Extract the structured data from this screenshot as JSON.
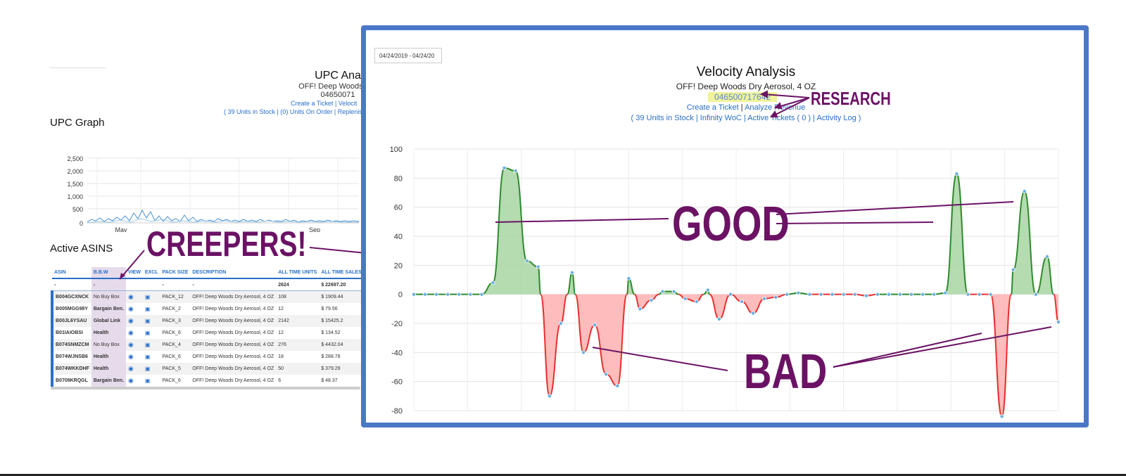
{
  "background_page": {
    "title": "UPC Ana",
    "product": "OFF! Deep Woods Dry",
    "upc": "04650071",
    "links": "Create a Ticket | Velocit",
    "stock_links": "( 39 Units in Stock | (0) Units On Order | Replenis",
    "graph_title": "UPC Graph",
    "y_ticks": [
      "2,500",
      "2,000",
      "1,500",
      "1,000",
      "500",
      "0"
    ],
    "x_ticks": [
      "May",
      "Sep"
    ],
    "active_asins_title": "Active ASINS",
    "table": {
      "headers": [
        "ASIN",
        "B.B.W",
        "VIEW",
        "EXCL",
        "PACK SIZE",
        "DESCRIPTION",
        "ALL TIME UNITS",
        "ALL TIME SALES"
      ],
      "totals": [
        "-",
        "-",
        "",
        "",
        "-",
        "-",
        "2624",
        "$ 22697.20"
      ],
      "rows": [
        {
          "asin": "B004GCXNCK",
          "bbw": "No Buy Box",
          "bbw_red": false,
          "pack": "PACK_12",
          "desc": "OFF! Deep Woods Dry Aerosol, 4 OZ",
          "units": "108",
          "sales": "$ 1909.44"
        },
        {
          "asin": "B005MGG98Y",
          "bbw": "Bargain Ben.",
          "bbw_red": true,
          "pack": "PACK_2",
          "desc": "OFF! Deep Woods Dry Aerosol, 4 OZ",
          "units": "12",
          "sales": "$ 79.56"
        },
        {
          "asin": "B00JL6YSAU",
          "bbw": "Global Link",
          "bbw_red": true,
          "pack": "PACK_3",
          "desc": "OFF! Deep Woods Dry Aerosol, 4 OZ",
          "units": "2142",
          "sales": "$ 15425.2"
        },
        {
          "asin": "B01IAIOBSI",
          "bbw": "Health",
          "bbw_red": true,
          "pack": "PACK_6",
          "desc": "OFF! Deep Woods Dry Aerosol, 4 OZ",
          "units": "12",
          "sales": "$ 134.52"
        },
        {
          "asin": "B074SNMZCM",
          "bbw": "No Buy Box",
          "bbw_red": false,
          "pack": "PACK_4",
          "desc": "OFF! Deep Woods Dry Aerosol, 4 OZ",
          "units": "276",
          "sales": "$ 4432.04"
        },
        {
          "asin": "B074WJNSB6",
          "bbw": "Health",
          "bbw_red": true,
          "pack": "PACK_6",
          "desc": "OFF! Deep Woods Dry Aerosol, 4 OZ",
          "units": "18",
          "sales": "$ 288.78"
        },
        {
          "asin": "B074WKKDHF",
          "bbw": "Health",
          "bbw_red": true,
          "pack": "PACK_5",
          "desc": "OFF! Deep Woods Dry Aerosol, 4 OZ",
          "units": "50",
          "sales": "$ 379.29"
        },
        {
          "asin": "B0709KRQGL",
          "bbw": "Bargain Ben.",
          "bbw_red": true,
          "pack": "PACK_6",
          "desc": "OFF! Deep Woods Dry Aerosol, 4 OZ",
          "units": "6",
          "sales": "$ 48.37"
        }
      ]
    }
  },
  "velocity": {
    "date_range": "04/24/2019 - 04/24/20",
    "title": "Velocity Analysis",
    "product": "OFF! Deep Woods Dry Aerosol, 4 OZ",
    "upc": "046500717642",
    "create_ticket": "Create a Ticket",
    "analyze_revenue": "Analyze Revenue",
    "units_in_stock": "( 39 Units in Stock",
    "infinity_woc": "Infinity WoC",
    "active_tickets": "Active Tickets ( 0 )",
    "activity_log": "Activity Log )",
    "sep": "|"
  },
  "annotations": {
    "research": "RESEARCH",
    "creepers": "CREEPERS!",
    "good": "GOOD",
    "bad": "BAD",
    "color": "#6b1265"
  },
  "colors": {
    "positive_line": "#2e8b2e",
    "positive_fill": "#a8d5a2",
    "negative_line": "#e83030",
    "negative_fill": "#ffb0b0",
    "point": "#6ab0e0",
    "frame": "#4a78c7"
  },
  "chart_data": {
    "type": "area",
    "ylim": [
      -80,
      100
    ],
    "y_ticks": [
      100,
      80,
      60,
      40,
      20,
      0,
      -20,
      -40,
      -60,
      -80
    ],
    "grid": true,
    "series": [
      {
        "values": [
          0,
          0,
          0,
          0,
          0,
          0,
          0,
          8,
          87,
          85,
          23,
          19,
          -70,
          -20,
          15,
          -40,
          -21,
          -55,
          -63,
          11,
          -10,
          -4,
          2,
          2,
          -3,
          -5,
          3,
          -17,
          0,
          -5,
          -13,
          -3,
          -2,
          0,
          1,
          0,
          0,
          0,
          0,
          0,
          -1,
          0,
          0,
          0,
          0,
          0,
          0,
          1,
          83,
          0,
          0,
          0,
          -84,
          17,
          71,
          0,
          26,
          -19
        ]
      }
    ]
  }
}
